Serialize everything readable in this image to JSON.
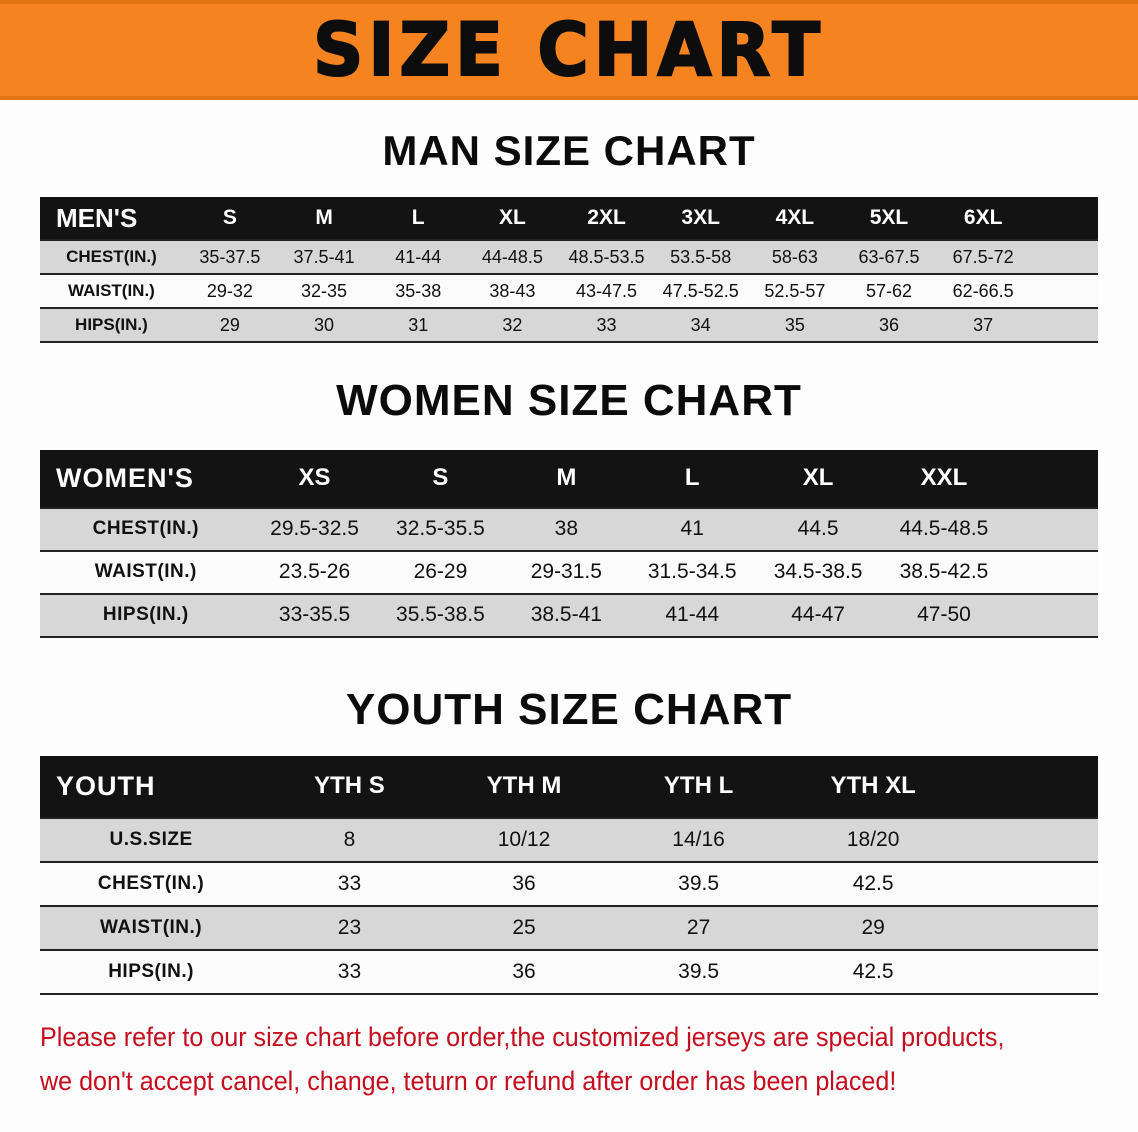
{
  "banner": {
    "title": "SIZE CHART"
  },
  "sections": [
    {
      "heading": "MAN SIZE CHART",
      "table": {
        "header": [
          "MEN'S",
          "S",
          "M",
          "L",
          "XL",
          "2XL",
          "3XL",
          "4XL",
          "5XL",
          "6XL"
        ],
        "rows": [
          [
            "CHEST(IN.)",
            "35-37.5",
            "37.5-41",
            "41-44",
            "44-48.5",
            "48.5-53.5",
            "53.5-58",
            "58-63",
            "63-67.5",
            "67.5-72"
          ],
          [
            "WAIST(IN.)",
            "29-32",
            "32-35",
            "35-38",
            "38-43",
            "43-47.5",
            "47.5-52.5",
            "52.5-57",
            "57-62",
            "62-66.5"
          ],
          [
            "HIPS(IN.)",
            "29",
            "30",
            "31",
            "32",
            "33",
            "34",
            "35",
            "36",
            "37"
          ]
        ]
      }
    },
    {
      "heading": "WOMEN SIZE CHART",
      "table": {
        "header": [
          "WOMEN'S",
          "XS",
          "S",
          "M",
          "L",
          "XL",
          "XXL"
        ],
        "rows": [
          [
            "CHEST(IN.)",
            "29.5-32.5",
            "32.5-35.5",
            "38",
            "41",
            "44.5",
            "44.5-48.5"
          ],
          [
            "WAIST(IN.)",
            "23.5-26",
            "26-29",
            "29-31.5",
            "31.5-34.5",
            "34.5-38.5",
            "38.5-42.5"
          ],
          [
            "HIPS(IN.)",
            "33-35.5",
            "35.5-38.5",
            "38.5-41",
            "41-44",
            "44-47",
            "47-50"
          ]
        ]
      }
    },
    {
      "heading": "YOUTH SIZE CHART",
      "table": {
        "header": [
          "YOUTH",
          "YTH S",
          "YTH M",
          "YTH L",
          "YTH XL"
        ],
        "rows": [
          [
            "U.S.SIZE",
            "8",
            "10/12",
            "14/16",
            "18/20"
          ],
          [
            "CHEST(IN.)",
            "33",
            "36",
            "39.5",
            "42.5"
          ],
          [
            "WAIST(IN.)",
            "23",
            "25",
            "27",
            "29"
          ],
          [
            "HIPS(IN.)",
            "33",
            "36",
            "39.5",
            "42.5"
          ]
        ]
      }
    }
  ],
  "disclaimer": {
    "lines": [
      "Please refer to our size chart before order,the customized jerseys are special products,",
      "we don't accept cancel, change, teturn or refund after order has been placed!"
    ]
  },
  "colors": {
    "banner_orange": "#f5831f",
    "header_black": "#131313",
    "row_gray": "#d7d7d7",
    "disclaimer_red": "#c60d1e"
  }
}
